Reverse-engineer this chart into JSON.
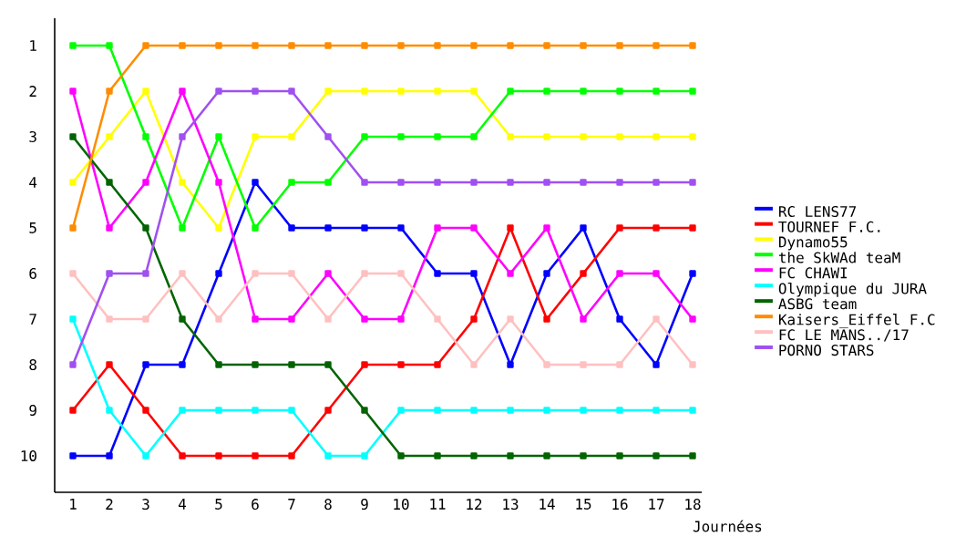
{
  "chart_data": {
    "type": "line",
    "xlabel": "Journées",
    "x": [
      1,
      2,
      3,
      4,
      5,
      6,
      7,
      8,
      9,
      10,
      11,
      12,
      13,
      14,
      15,
      16,
      17,
      18
    ],
    "xlim": [
      0.5,
      18.25
    ],
    "ylim": [
      10.8,
      0.4
    ],
    "xticks": [
      1,
      2,
      3,
      4,
      5,
      6,
      7,
      8,
      9,
      10,
      11,
      12,
      13,
      14,
      15,
      16,
      17,
      18
    ],
    "yticks": [
      1,
      2,
      3,
      4,
      5,
      6,
      7,
      8,
      9,
      10
    ],
    "marker": "square",
    "line_style": "solid",
    "legend": "right",
    "grid": false,
    "series": [
      {
        "name": "RC LENS77",
        "color": "#0000ff",
        "values": [
          10,
          10,
          8,
          8,
          6,
          4,
          5,
          5,
          5,
          5,
          6,
          6,
          8,
          6,
          5,
          7,
          8,
          6
        ]
      },
      {
        "name": "TOURNEF F.C.",
        "color": "#ff0000",
        "values": [
          9,
          8,
          9,
          10,
          10,
          10,
          10,
          9,
          8,
          8,
          8,
          7,
          5,
          7,
          6,
          5,
          5,
          5
        ]
      },
      {
        "name": "Dynamo55",
        "color": "#ffff00",
        "values": [
          4,
          3,
          2,
          4,
          5,
          3,
          3,
          2,
          2,
          2,
          2,
          2,
          3,
          3,
          3,
          3,
          3,
          3
        ]
      },
      {
        "name": "the SkWAd teaM",
        "color": "#00ff00",
        "values": [
          1,
          1,
          3,
          5,
          3,
          5,
          4,
          4,
          3,
          3,
          3,
          3,
          2,
          2,
          2,
          2,
          2,
          2
        ]
      },
      {
        "name": "FC CHAWI",
        "color": "#ff00ff",
        "values": [
          2,
          5,
          4,
          2,
          4,
          7,
          7,
          6,
          7,
          7,
          5,
          5,
          6,
          5,
          7,
          6,
          6,
          7
        ]
      },
      {
        "name": "Olympique du JURA",
        "color": "#00ffff",
        "values": [
          7,
          9,
          10,
          9,
          9,
          9,
          9,
          10,
          10,
          9,
          9,
          9,
          9,
          9,
          9,
          9,
          9,
          9
        ]
      },
      {
        "name": "ASBG team",
        "color": "#006400",
        "values": [
          3,
          4,
          5,
          7,
          8,
          8,
          8,
          8,
          9,
          10,
          10,
          10,
          10,
          10,
          10,
          10,
          10,
          10
        ]
      },
      {
        "name": "Kaisers_Eiffel F.C",
        "color": "#ff8c00",
        "values": [
          5,
          2,
          1,
          1,
          1,
          1,
          1,
          1,
          1,
          1,
          1,
          1,
          1,
          1,
          1,
          1,
          1,
          1
        ]
      },
      {
        "name": "FC LE MANS../17",
        "color": "#ffc0c0",
        "values": [
          6,
          7,
          7,
          6,
          7,
          6,
          6,
          7,
          6,
          6,
          7,
          8,
          7,
          8,
          8,
          8,
          7,
          8
        ]
      },
      {
        "name": "PORNO STARS",
        "color": "#a050f0",
        "values": [
          8,
          6,
          6,
          3,
          2,
          2,
          2,
          3,
          4,
          4,
          4,
          4,
          4,
          4,
          4,
          4,
          4,
          4
        ]
      }
    ]
  }
}
